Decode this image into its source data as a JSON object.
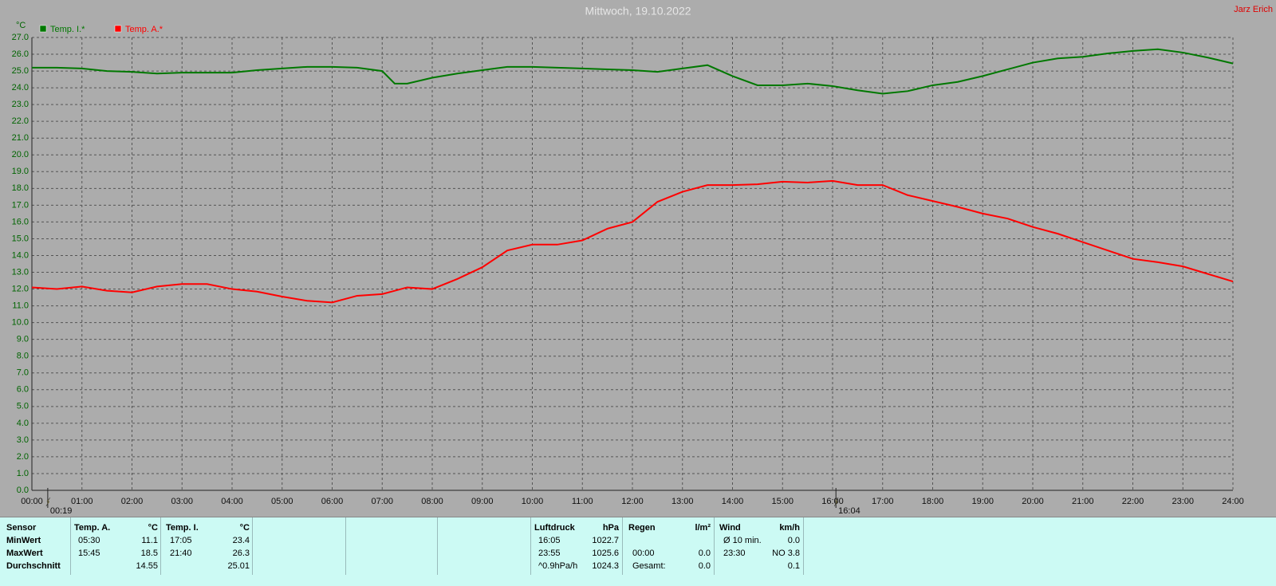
{
  "chart_data": {
    "type": "line",
    "title": "Mittwoch, 19.10.2022",
    "author": "Jarz Erich",
    "ylabel": "°C",
    "xlim": [
      0,
      24
    ],
    "ylim": [
      0,
      27
    ],
    "grid": true,
    "xticks": [
      {
        "value": 0,
        "label": "00:00"
      },
      {
        "value": 1,
        "label": "01:00"
      },
      {
        "value": 2,
        "label": "02:00"
      },
      {
        "value": 3,
        "label": "03:00"
      },
      {
        "value": 4,
        "label": "04:00"
      },
      {
        "value": 5,
        "label": "05:00"
      },
      {
        "value": 6,
        "label": "06:00"
      },
      {
        "value": 7,
        "label": "07:00"
      },
      {
        "value": 8,
        "label": "08:00"
      },
      {
        "value": 9,
        "label": "09:00"
      },
      {
        "value": 10,
        "label": "10:00"
      },
      {
        "value": 11,
        "label": "11:00"
      },
      {
        "value": 12,
        "label": "12:00"
      },
      {
        "value": 13,
        "label": "13:00"
      },
      {
        "value": 14,
        "label": "14:00"
      },
      {
        "value": 15,
        "label": "15:00"
      },
      {
        "value": 16,
        "label": "16:00"
      },
      {
        "value": 17,
        "label": "17:00"
      },
      {
        "value": 18,
        "label": "18:00"
      },
      {
        "value": 19,
        "label": "19:00"
      },
      {
        "value": 20,
        "label": "20:00"
      },
      {
        "value": 21,
        "label": "21:00"
      },
      {
        "value": 22,
        "label": "22:00"
      },
      {
        "value": 23,
        "label": "23:00"
      },
      {
        "value": 24,
        "label": "24:00"
      }
    ],
    "yticks": [
      {
        "value": 0,
        "label": "0.0"
      },
      {
        "value": 1,
        "label": "1.0"
      },
      {
        "value": 2,
        "label": "2.0"
      },
      {
        "value": 3,
        "label": "3.0"
      },
      {
        "value": 4,
        "label": "4.0"
      },
      {
        "value": 5,
        "label": "5.0"
      },
      {
        "value": 6,
        "label": "6.0"
      },
      {
        "value": 7,
        "label": "7.0"
      },
      {
        "value": 8,
        "label": "8.0"
      },
      {
        "value": 9,
        "label": "9.0"
      },
      {
        "value": 10,
        "label": "10.0"
      },
      {
        "value": 11,
        "label": "11.0"
      },
      {
        "value": 12,
        "label": "12.0"
      },
      {
        "value": 13,
        "label": "13.0"
      },
      {
        "value": 14,
        "label": "14.0"
      },
      {
        "value": 15,
        "label": "15.0"
      },
      {
        "value": 16,
        "label": "16.0"
      },
      {
        "value": 17,
        "label": "17.0"
      },
      {
        "value": 18,
        "label": "18.0"
      },
      {
        "value": 19,
        "label": "19.0"
      },
      {
        "value": 20,
        "label": "20.0"
      },
      {
        "value": 21,
        "label": "21.0"
      },
      {
        "value": 22,
        "label": "22.0"
      },
      {
        "value": 23,
        "label": "23.0"
      },
      {
        "value": 24,
        "label": "24.0"
      },
      {
        "value": 25,
        "label": "25.0"
      },
      {
        "value": 26,
        "label": "26.0"
      },
      {
        "value": 27,
        "label": "27.0"
      }
    ],
    "x": [
      0,
      0.5,
      1,
      1.5,
      2,
      2.5,
      3,
      3.5,
      4,
      4.5,
      5,
      5.5,
      6,
      6.5,
      7,
      7.25,
      7.5,
      8,
      8.5,
      9,
      9.5,
      10,
      10.5,
      11,
      11.5,
      12,
      12.5,
      13,
      13.5,
      14,
      14.5,
      15,
      15.5,
      16,
      16.5,
      17,
      17.5,
      18,
      18.5,
      19,
      19.5,
      20,
      20.5,
      21,
      21.5,
      22,
      22.5,
      23,
      23.5,
      24
    ],
    "series": [
      {
        "name": "Temp. I.*",
        "color": "#007800",
        "values": [
          25.2,
          25.2,
          25.15,
          25.0,
          24.95,
          24.85,
          24.9,
          24.9,
          24.9,
          25.05,
          25.15,
          25.25,
          25.25,
          25.2,
          25.0,
          24.25,
          24.25,
          24.6,
          24.85,
          25.05,
          25.25,
          25.25,
          25.2,
          25.15,
          25.1,
          25.05,
          24.95,
          25.15,
          25.35,
          24.7,
          24.15,
          24.15,
          24.25,
          24.1,
          23.85,
          23.65,
          23.8,
          24.15,
          24.35,
          24.7,
          25.1,
          25.5,
          25.75,
          25.85,
          26.05,
          26.2,
          26.3,
          26.1,
          25.8,
          25.45
        ]
      },
      {
        "name": "Temp. A.*",
        "color": "#ff0000",
        "values": [
          12.1,
          12.0,
          12.15,
          11.9,
          11.8,
          12.15,
          12.3,
          12.3,
          12.0,
          11.85,
          11.55,
          11.3,
          11.2,
          11.6,
          11.7,
          11.9,
          12.1,
          12.0,
          12.6,
          13.3,
          14.3,
          14.65,
          14.65,
          14.9,
          15.6,
          16.0,
          17.2,
          17.8,
          18.2,
          18.2,
          18.25,
          18.4,
          18.35,
          18.45,
          18.2,
          18.2,
          17.6,
          17.25,
          16.9,
          16.5,
          16.2,
          15.7,
          15.3,
          14.8,
          14.3,
          13.8,
          13.6,
          13.35,
          12.9,
          12.45
        ]
      }
    ],
    "markers": [
      {
        "x": 0.3167,
        "label": "00:19"
      },
      {
        "x": 16.0667,
        "label": "16:04"
      }
    ]
  },
  "table": {
    "row_labels": {
      "header": "Sensor",
      "rows": [
        "MinWert",
        "MaxWert",
        "Durchschnitt"
      ]
    },
    "groups": [
      {
        "header": [
          "Temp. A.",
          "°C"
        ],
        "rows": [
          [
            "05:30",
            "11.1"
          ],
          [
            "15:45",
            "18.5"
          ],
          [
            null,
            "14.55"
          ]
        ]
      },
      {
        "header": [
          "Temp. I.",
          "°C"
        ],
        "rows": [
          [
            "17:05",
            "23.4"
          ],
          [
            "21:40",
            "26.3"
          ],
          [
            null,
            "25.01"
          ]
        ]
      },
      {
        "header": [
          "Luftdruck",
          "hPa"
        ],
        "rows": [
          [
            "16:05",
            "1022.7"
          ],
          [
            "23:55",
            "1025.6"
          ],
          [
            "^0.9hPa/h",
            "1024.3"
          ]
        ]
      },
      {
        "header": [
          "Regen",
          "l/m²"
        ],
        "rows": [
          [
            null,
            null
          ],
          [
            "00:00",
            "0.0"
          ],
          [
            "Gesamt:",
            "0.0"
          ]
        ]
      },
      {
        "header": [
          "Wind",
          "km/h"
        ],
        "rows": [
          [
            "Ø 10 min.",
            "0.0"
          ],
          [
            "23:30",
            "NO 3.8"
          ],
          [
            null,
            "0.1"
          ]
        ]
      }
    ]
  }
}
